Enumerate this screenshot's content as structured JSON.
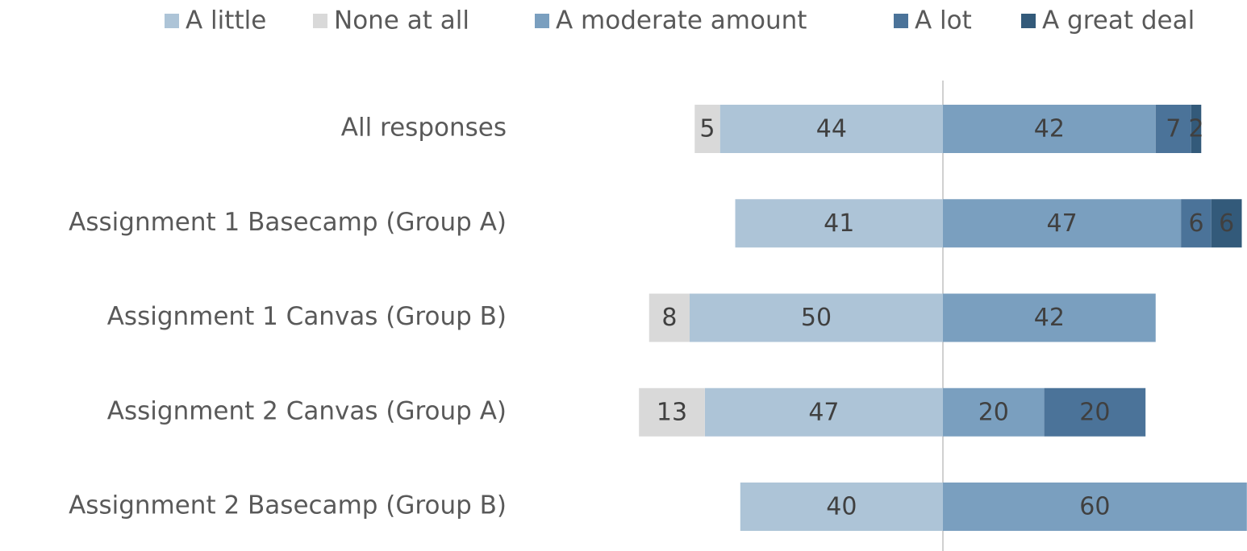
{
  "chart_data": {
    "type": "diverging_bar",
    "categories": [
      "All responses",
      "Assignment 1 Basecamp (Group A)",
      "Assignment 1 Canvas (Group B)",
      "Assignment 2 Canvas (Group A)",
      "Assignment 2 Basecamp (Group B)"
    ],
    "series": [
      {
        "name": "A little",
        "color": "#adc4d7",
        "side": "left",
        "values": [
          44,
          41,
          50,
          47,
          40
        ]
      },
      {
        "name": "None at all",
        "color": "#d9d9d9",
        "side": "left",
        "values": [
          5,
          null,
          8,
          13,
          null
        ]
      },
      {
        "name": "A moderate amount",
        "color": "#7a9fbf",
        "side": "right",
        "values": [
          42,
          47,
          42,
          20,
          60
        ]
      },
      {
        "name": "A lot",
        "color": "#4b7399",
        "side": "right",
        "values": [
          7,
          6,
          null,
          20,
          null
        ]
      },
      {
        "name": "A great deal",
        "color": "#335a7a",
        "side": "right",
        "values": [
          2,
          6,
          null,
          null,
          null
        ]
      }
    ],
    "legend": "top"
  }
}
